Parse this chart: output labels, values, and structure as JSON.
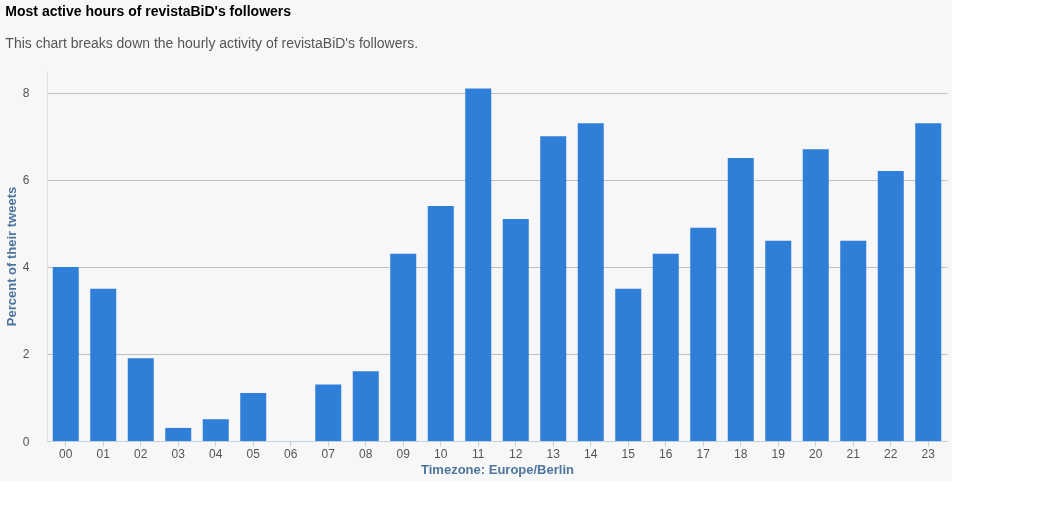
{
  "chart_data": {
    "type": "bar",
    "title": "Most active hours of revistaBiD's followers",
    "subtitle": "This chart breaks down the hourly activity of revistaBiD's followers.",
    "xlabel": "Timezone: Europe/Berlin",
    "ylabel": "Percent of their tweets",
    "categories": [
      "00",
      "01",
      "02",
      "03",
      "04",
      "05",
      "06",
      "07",
      "08",
      "09",
      "10",
      "11",
      "12",
      "13",
      "14",
      "15",
      "16",
      "17",
      "18",
      "19",
      "20",
      "21",
      "22",
      "23"
    ],
    "values": [
      4.0,
      3.5,
      1.9,
      0.3,
      0.5,
      1.1,
      0,
      1.3,
      1.6,
      4.3,
      5.4,
      8.1,
      5.1,
      7.0,
      7.3,
      3.5,
      4.3,
      4.9,
      6.5,
      4.6,
      6.7,
      4.6,
      6.2,
      7.3
    ],
    "color": "#2f7ed8",
    "ylim": [
      0,
      8.5
    ],
    "yticks": [
      0,
      2,
      4,
      6,
      8
    ],
    "grid": "y"
  }
}
